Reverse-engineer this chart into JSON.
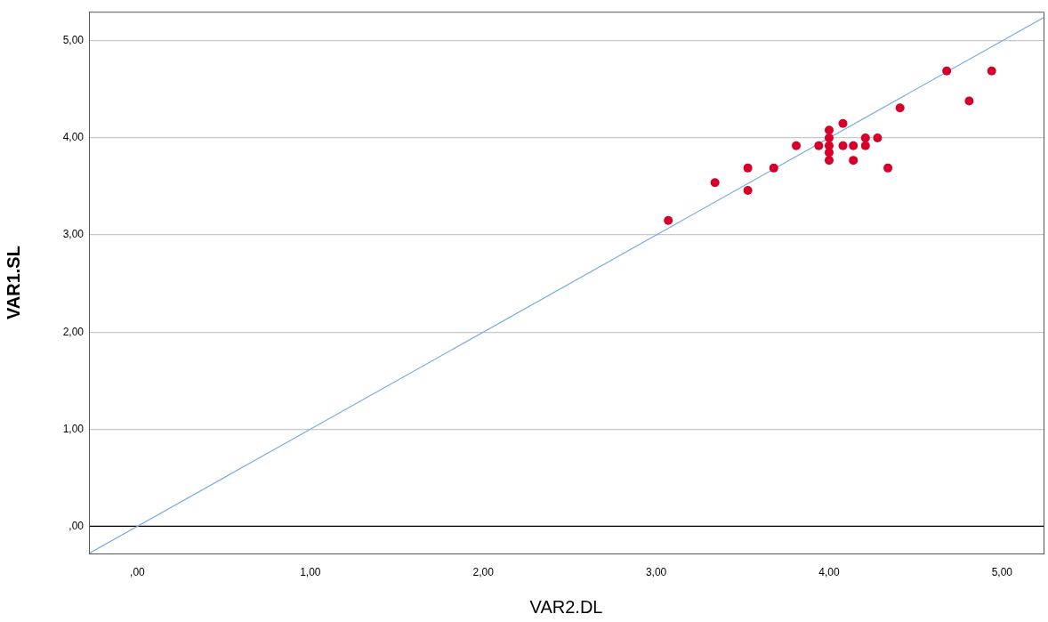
{
  "chart_data": {
    "type": "scatter",
    "xlabel": "VAR2.DL",
    "ylabel": "VAR1.SL",
    "xlim": [
      -0.28,
      5.24
    ],
    "ylim": [
      -0.28,
      5.3
    ],
    "xticks": [
      {
        "value": 0,
        "label": ",00"
      },
      {
        "value": 1,
        "label": "1,00"
      },
      {
        "value": 2,
        "label": "2,00"
      },
      {
        "value": 3,
        "label": "3,00"
      },
      {
        "value": 4,
        "label": "4,00"
      },
      {
        "value": 5,
        "label": "5,00"
      }
    ],
    "yticks": [
      {
        "value": 0,
        "label": ",00"
      },
      {
        "value": 1,
        "label": "1,00"
      },
      {
        "value": 2,
        "label": "2,00"
      },
      {
        "value": 3,
        "label": "3,00"
      },
      {
        "value": 4,
        "label": "4,00"
      },
      {
        "value": 5,
        "label": "5,00"
      }
    ],
    "grid": "y",
    "ref_lines": [
      {
        "axis": "y",
        "value": 0,
        "color": "#000000"
      }
    ],
    "series": [
      {
        "type": "scatter",
        "marker": "circle",
        "color": "#d6002a",
        "x": [
          3.07,
          3.34,
          3.53,
          3.53,
          3.68,
          3.81,
          3.94,
          4.0,
          4.0,
          4.0,
          4.0,
          4.0,
          4.08,
          4.08,
          4.14,
          4.14,
          4.21,
          4.21,
          4.28,
          4.34,
          4.41,
          4.68,
          4.81,
          4.94
        ],
        "values": [
          3.15,
          3.54,
          3.69,
          3.46,
          3.69,
          3.92,
          3.92,
          4.08,
          4.0,
          3.92,
          3.85,
          3.77,
          4.15,
          3.92,
          3.92,
          3.77,
          4.0,
          3.92,
          4.0,
          3.69,
          4.31,
          4.69,
          4.38,
          4.69
        ]
      },
      {
        "type": "line",
        "marker": "none",
        "color": "#7aaee8",
        "x": [
          -0.28,
          5.24
        ],
        "values": [
          -0.28,
          5.24
        ]
      }
    ]
  }
}
